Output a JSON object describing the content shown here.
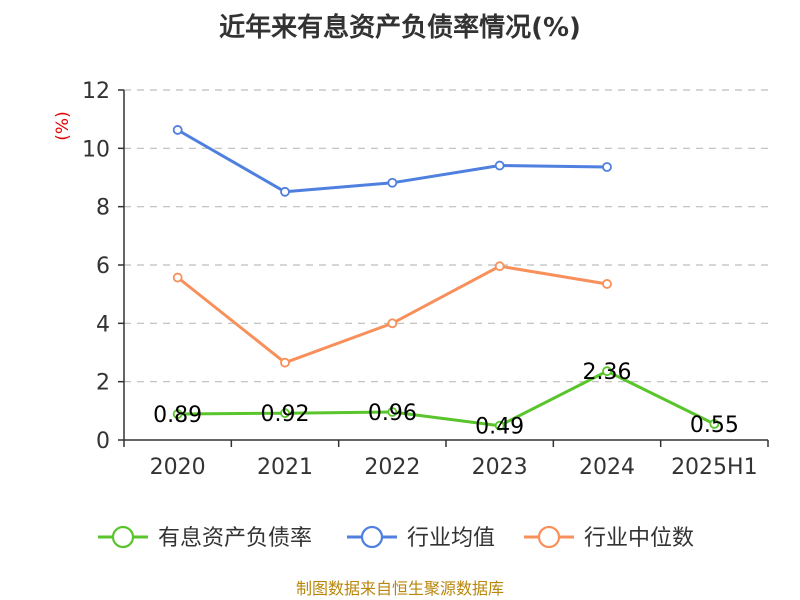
{
  "chart_data": {
    "type": "line",
    "title": "近年来有息资产负债率情况(%)",
    "ylabel": "(%)",
    "xlabel": "",
    "categories": [
      "2020",
      "2021",
      "2022",
      "2023",
      "2024",
      "2025H1"
    ],
    "ylim": [
      0,
      12
    ],
    "yticks": [
      0,
      2,
      4,
      6,
      8,
      10,
      12
    ],
    "grid": true,
    "legend_position": "bottom",
    "series": [
      {
        "name": "有息资产负债率",
        "color": "#5ac42c",
        "values": [
          0.89,
          0.92,
          0.96,
          0.49,
          2.36,
          0.55
        ],
        "labels": [
          "0.89",
          "0.92",
          "0.96",
          "0.49",
          "2.36",
          "0.55"
        ],
        "show_labels": true
      },
      {
        "name": "行业均值",
        "color": "#4f7fdf",
        "values": [
          10.63,
          8.51,
          8.82,
          9.41,
          9.36,
          null
        ],
        "show_labels": false
      },
      {
        "name": "行业中位数",
        "color": "#f7905a",
        "values": [
          5.57,
          2.65,
          4.0,
          5.96,
          5.35,
          null
        ],
        "show_labels": false
      }
    ]
  },
  "source_text": "制图数据来自恒生聚源数据库"
}
